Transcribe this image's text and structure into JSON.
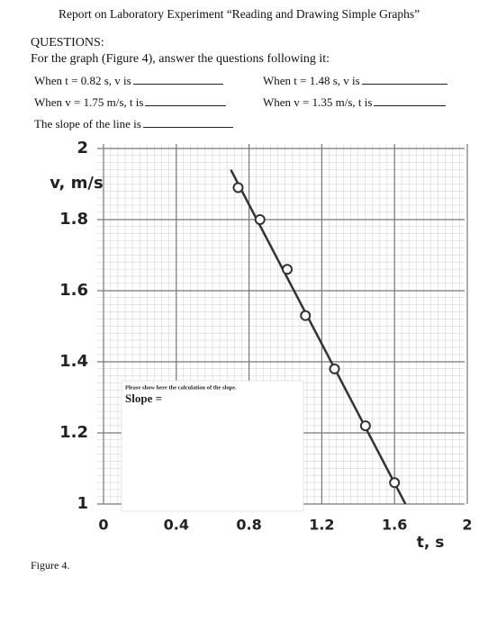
{
  "header": {
    "title": "Report on Laboratory Experiment “Reading and Drawing Simple Graphs”"
  },
  "questions": {
    "heading": "QUESTIONS:",
    "intro": "For the graph (Figure 4), answer the questions following it:",
    "items": [
      "When t = 0.82 s, v is",
      "When t = 1.48 s, v is",
      "When v = 1.75 m/s, t is",
      "When v = 1.35 m/s, t is",
      "The slope of the line is"
    ]
  },
  "chart_data": {
    "type": "scatter",
    "x_label": "t, s",
    "y_label": "v, m/s",
    "xlim": [
      0,
      2
    ],
    "ylim": [
      1,
      2
    ],
    "xticks": [
      0,
      0.4,
      0.8,
      1.2,
      1.6,
      2
    ],
    "yticks": [
      1,
      1.2,
      1.4,
      1.6,
      1.8,
      2
    ],
    "grid": true,
    "series": [
      {
        "color": "#333333",
        "x": [
          0.74,
          0.86,
          1.01,
          1.11,
          1.27,
          1.44,
          1.6
        ],
        "values": [
          1.89,
          1.8,
          1.66,
          1.53,
          1.38,
          1.22,
          1.06
        ]
      },
      {
        "color": "#333333",
        "x": [
          0.7,
          1.66
        ],
        "values": [
          1.94,
          1.0
        ]
      }
    ]
  },
  "slope_box": {
    "instruction": "Please show here the calculation of the slope.",
    "label": "Slope ="
  },
  "caption": "Figure 4."
}
